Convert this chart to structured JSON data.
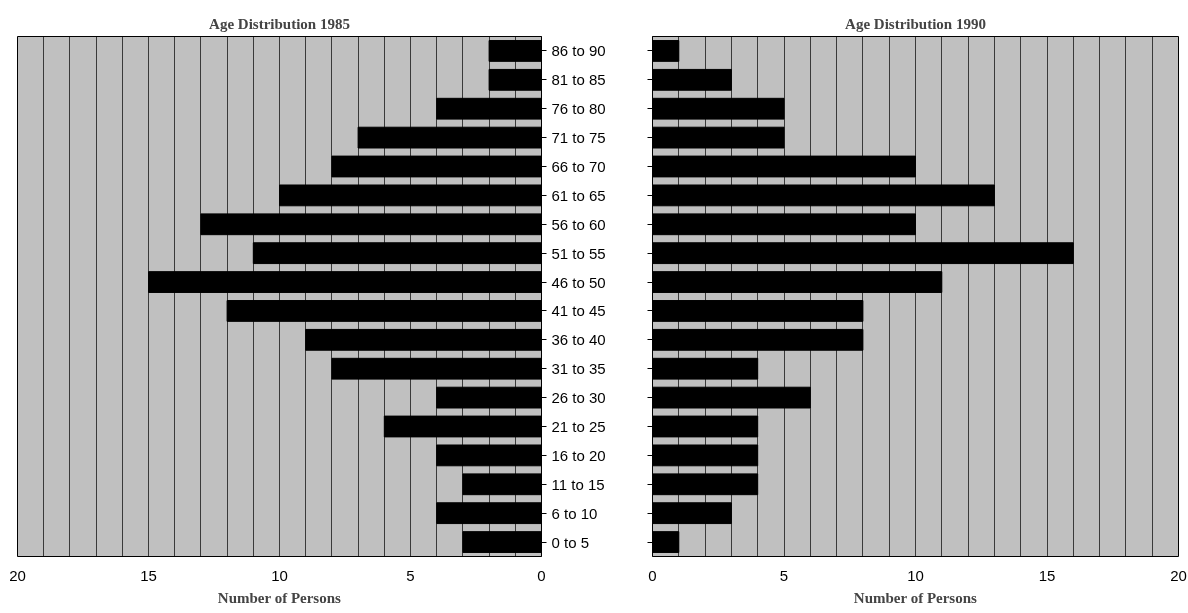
{
  "chart_data": [
    {
      "type": "bar",
      "orientation": "horizontal",
      "title": "Age Distribution 1985",
      "xlabel": "Number of Persons",
      "categories": [
        "86 to 90",
        "81 to 85",
        "76 to 80",
        "71 to 75",
        "66 to 70",
        "61 to 65",
        "56 to 60",
        "51 to 55",
        "46 to 50",
        "41 to 45",
        "36 to 40",
        "31 to 35",
        "26 to 30",
        "21 to 25",
        "16 to 20",
        "11 to 15",
        "6 to 10",
        "0 to 5"
      ],
      "values": [
        2,
        2,
        4,
        7,
        8,
        10,
        13,
        11,
        15,
        12,
        9,
        8,
        4,
        6,
        4,
        3,
        4,
        3
      ],
      "color": "#000000",
      "xlim": [
        20,
        0
      ],
      "xticks": [
        0,
        {
          "value": 1,
          "label": null
        },
        {
          "value": 2,
          "label": null
        },
        {
          "value": 3,
          "label": null
        },
        {
          "value": 4,
          "label": null
        },
        5,
        {
          "value": 6,
          "label": null
        },
        {
          "value": 7,
          "label": null
        },
        {
          "value": 8,
          "label": null
        },
        {
          "value": 9,
          "label": null
        },
        10,
        {
          "value": 11,
          "label": null
        },
        {
          "value": 12,
          "label": null
        },
        {
          "value": 13,
          "label": null
        },
        {
          "value": 14,
          "label": null
        },
        15,
        {
          "value": 16,
          "label": null
        },
        {
          "value": 17,
          "label": null
        },
        {
          "value": 18,
          "label": null
        },
        {
          "value": 19,
          "label": null
        },
        20
      ],
      "grid": "x"
    },
    {
      "type": "bar",
      "orientation": "horizontal",
      "title": "Age Distribution 1990",
      "xlabel": "Number of Persons",
      "categories": [
        null,
        null,
        null,
        null,
        null,
        null,
        null,
        null,
        null,
        null,
        null,
        null,
        null,
        null,
        null,
        null,
        null,
        null
      ],
      "values": [
        1,
        3,
        5,
        5,
        10,
        13,
        10,
        16,
        11,
        8,
        8,
        4,
        6,
        4,
        4,
        4,
        3,
        1
      ],
      "color": "#000000",
      "xlim": [
        0,
        20
      ],
      "xticks": [
        0,
        {
          "value": 1,
          "label": null
        },
        {
          "value": 2,
          "label": null
        },
        {
          "value": 3,
          "label": null
        },
        {
          "value": 4,
          "label": null
        },
        5,
        {
          "value": 6,
          "label": null
        },
        {
          "value": 7,
          "label": null
        },
        {
          "value": 8,
          "label": null
        },
        {
          "value": 9,
          "label": null
        },
        10,
        {
          "value": 11,
          "label": null
        },
        {
          "value": 12,
          "label": null
        },
        {
          "value": 13,
          "label": null
        },
        {
          "value": 14,
          "label": null
        },
        15,
        {
          "value": 16,
          "label": null
        },
        {
          "value": 17,
          "label": null
        },
        {
          "value": 18,
          "label": null
        },
        {
          "value": 19,
          "label": null
        },
        20
      ],
      "grid": "x",
      "tick_labels": "x"
    }
  ]
}
